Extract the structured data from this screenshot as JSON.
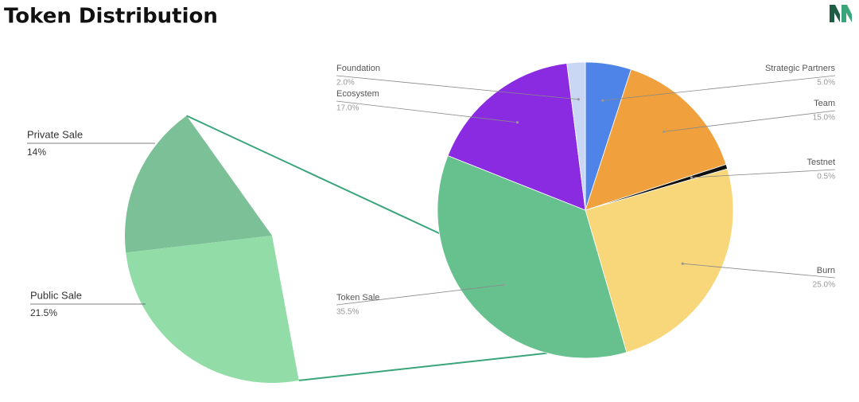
{
  "chart_data": [
    {
      "type": "pie",
      "title": "Token Distribution",
      "categories": [
        "Strategic Partners",
        "Team",
        "Testnet",
        "Burn",
        "Token Sale",
        "Ecosystem",
        "Foundation"
      ],
      "values": [
        5,
        15,
        0.5,
        25,
        35.5,
        17,
        2
      ],
      "value_labels": [
        "5.0%",
        "15.0%",
        "0.5%",
        "25.0%",
        "35.5%",
        "17.0%",
        "2.0%"
      ],
      "colors": [
        "#4e84e8",
        "#f0a03c",
        "#111111",
        "#f8d77a",
        "#67c18f",
        "#8a2be2",
        "#c9d7f5"
      ]
    },
    {
      "type": "pie",
      "categories": [
        "Private Sale",
        "Public Sale"
      ],
      "values": [
        14,
        21.5
      ],
      "value_labels": [
        "14%",
        "21.5%"
      ],
      "colors": [
        "#7bc096",
        "#92dca8"
      ]
    }
  ]
}
